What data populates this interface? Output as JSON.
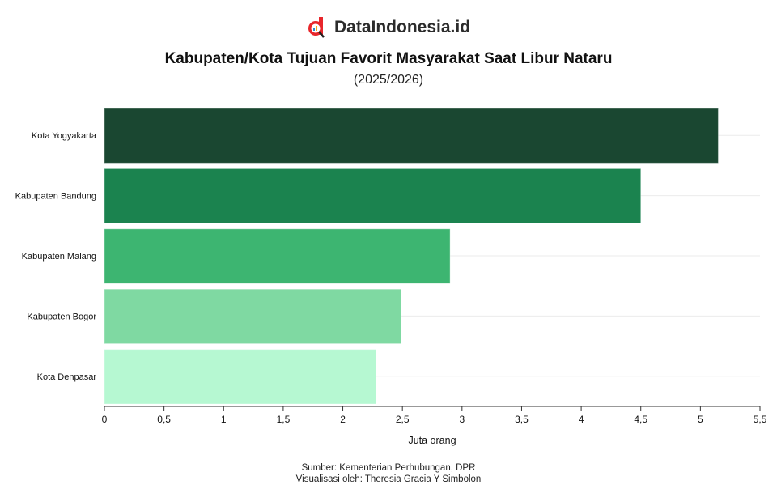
{
  "brand": {
    "name": "DataIndonesia.id",
    "logo_color": "#e8262b"
  },
  "chart_data": {
    "type": "bar",
    "orientation": "horizontal",
    "title": "Kabupaten/Kota Tujuan Favorit Masyarakat Saat Libur Nataru",
    "subtitle": "(2025/2026)",
    "categories": [
      "Kota Yogyakarta",
      "Kabupaten Bandung",
      "Kabupaten Malang",
      "Kabupaten Bogor",
      "Kota Denpasar"
    ],
    "values": [
      5.15,
      4.5,
      2.9,
      2.49,
      2.28
    ],
    "colors": [
      "#1a4731",
      "#1b834f",
      "#3db571",
      "#7fd9a2",
      "#b6f8d2"
    ],
    "xlabel": "Juta orang",
    "ylabel": "",
    "xlim": [
      0,
      5.5
    ],
    "xticks": [
      "0",
      "0,5",
      "1",
      "1,5",
      "2",
      "2,5",
      "3",
      "3,5",
      "4",
      "4,5",
      "5",
      "5,5"
    ],
    "grid": true,
    "legend": "none"
  },
  "footer": {
    "source": "Sumber: Kementerian Perhubungan, DPR",
    "credit": "Visualisasi oleh: Theresia Gracia Y Simbolon"
  }
}
